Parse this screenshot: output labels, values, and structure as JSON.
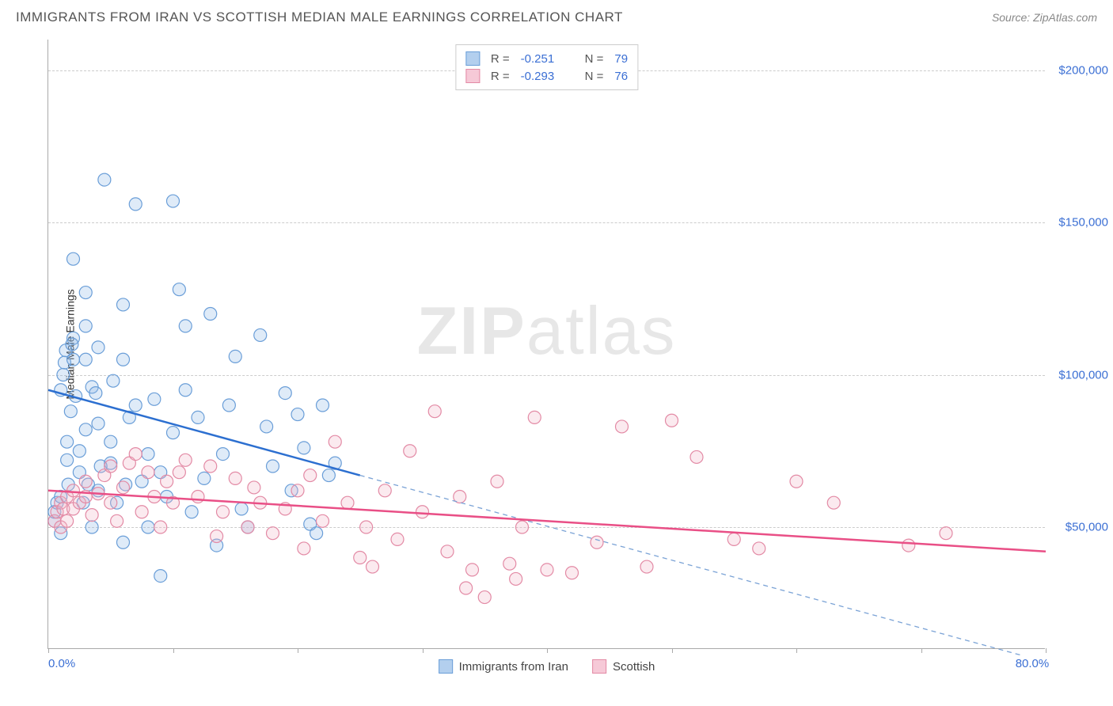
{
  "title": "IMMIGRANTS FROM IRAN VS SCOTTISH MEDIAN MALE EARNINGS CORRELATION CHART",
  "source": "Source: ZipAtlas.com",
  "ylabel": "Median Male Earnings",
  "watermark_zip": "ZIP",
  "watermark_atlas": "atlas",
  "chart": {
    "type": "scatter",
    "xlim": [
      0,
      80
    ],
    "ylim": [
      10000,
      210000
    ],
    "xtick_min_label": "0.0%",
    "xtick_max_label": "80.0%",
    "xticks": [
      0,
      10,
      20,
      30,
      40,
      50,
      60,
      70,
      80
    ],
    "yticks": [
      50000,
      100000,
      150000,
      200000
    ],
    "ytick_labels": [
      "$50,000",
      "$100,000",
      "$150,000",
      "$200,000"
    ],
    "background_color": "#ffffff",
    "grid_color": "#cccccc",
    "axis_color": "#aaaaaa",
    "tick_label_color": "#3b6fd4",
    "marker_radius": 8,
    "marker_stroke_width": 1.2,
    "marker_fill_opacity": 0.28,
    "series": [
      {
        "name": "Immigrants from Iran",
        "color_stroke": "#6a9ed8",
        "color_fill": "#8db8e6",
        "line_color": "#2c6fd0",
        "line_width": 2.5,
        "dash_color": "#7ba3d6",
        "R": "-0.251",
        "N": "79",
        "regression": {
          "x1": 0,
          "y1": 95000,
          "x2": 25,
          "y2": 67000
        },
        "dash_extension": {
          "x1": 25,
          "y1": 67000,
          "x2": 78,
          "y2": 8000
        },
        "points": [
          [
            0.5,
            52000
          ],
          [
            0.5,
            55000
          ],
          [
            0.7,
            58000
          ],
          [
            1,
            60000
          ],
          [
            1,
            48000
          ],
          [
            1,
            95000
          ],
          [
            1.2,
            100000
          ],
          [
            1.3,
            104000
          ],
          [
            1.4,
            108000
          ],
          [
            1.5,
            78000
          ],
          [
            1.5,
            72000
          ],
          [
            1.6,
            64000
          ],
          [
            1.8,
            88000
          ],
          [
            2,
            105000
          ],
          [
            2,
            138000
          ],
          [
            2,
            112000
          ],
          [
            2.2,
            93000
          ],
          [
            2.5,
            75000
          ],
          [
            2.5,
            68000
          ],
          [
            3,
            116000
          ],
          [
            3,
            127000
          ],
          [
            3,
            105000
          ],
          [
            3,
            82000
          ],
          [
            3.2,
            64000
          ],
          [
            3.5,
            50000
          ],
          [
            3.5,
            96000
          ],
          [
            4,
            109000
          ],
          [
            4,
            84000
          ],
          [
            4,
            62000
          ],
          [
            4.5,
            164000
          ],
          [
            5,
            78000
          ],
          [
            5,
            71000
          ],
          [
            5.2,
            98000
          ],
          [
            5.5,
            58000
          ],
          [
            6,
            105000
          ],
          [
            6,
            123000
          ],
          [
            6,
            45000
          ],
          [
            6.5,
            86000
          ],
          [
            7,
            156000
          ],
          [
            7,
            90000
          ],
          [
            7.5,
            65000
          ],
          [
            8,
            74000
          ],
          [
            8,
            50000
          ],
          [
            8.5,
            92000
          ],
          [
            9,
            68000
          ],
          [
            9,
            34000
          ],
          [
            9.5,
            60000
          ],
          [
            10,
            157000
          ],
          [
            10,
            81000
          ],
          [
            10.5,
            128000
          ],
          [
            11,
            95000
          ],
          [
            11,
            116000
          ],
          [
            11.5,
            55000
          ],
          [
            12,
            86000
          ],
          [
            12.5,
            66000
          ],
          [
            13,
            120000
          ],
          [
            13.5,
            44000
          ],
          [
            14,
            74000
          ],
          [
            14.5,
            90000
          ],
          [
            15,
            106000
          ],
          [
            15.5,
            56000
          ],
          [
            16,
            50000
          ],
          [
            17,
            113000
          ],
          [
            17.5,
            83000
          ],
          [
            18,
            70000
          ],
          [
            19,
            94000
          ],
          [
            19.5,
            62000
          ],
          [
            20,
            87000
          ],
          [
            20.5,
            76000
          ],
          [
            21,
            51000
          ],
          [
            21.5,
            48000
          ],
          [
            22,
            90000
          ],
          [
            22.5,
            67000
          ],
          [
            23,
            71000
          ],
          [
            4.2,
            70000
          ],
          [
            2.8,
            58000
          ],
          [
            1.9,
            110000
          ],
          [
            6.2,
            64000
          ],
          [
            3.8,
            94000
          ]
        ]
      },
      {
        "name": "Scottish",
        "color_stroke": "#e38aa5",
        "color_fill": "#f2b3c5",
        "line_color": "#e94f86",
        "line_width": 2.5,
        "R": "-0.293",
        "N": "76",
        "regression": {
          "x1": 0,
          "y1": 62000,
          "x2": 80,
          "y2": 42000
        },
        "points": [
          [
            0.5,
            52000
          ],
          [
            0.7,
            55000
          ],
          [
            1,
            58000
          ],
          [
            1,
            50000
          ],
          [
            1.2,
            56000
          ],
          [
            1.5,
            60000
          ],
          [
            1.5,
            52000
          ],
          [
            2,
            62000
          ],
          [
            2,
            56000
          ],
          [
            2.5,
            58000
          ],
          [
            3,
            60000
          ],
          [
            3,
            65000
          ],
          [
            3.5,
            54000
          ],
          [
            4,
            61000
          ],
          [
            4.5,
            67000
          ],
          [
            5,
            58000
          ],
          [
            5,
            70000
          ],
          [
            5.5,
            52000
          ],
          [
            6,
            63000
          ],
          [
            6.5,
            71000
          ],
          [
            7,
            74000
          ],
          [
            7.5,
            55000
          ],
          [
            8,
            68000
          ],
          [
            8.5,
            60000
          ],
          [
            9,
            50000
          ],
          [
            9.5,
            65000
          ],
          [
            10,
            58000
          ],
          [
            10.5,
            68000
          ],
          [
            11,
            72000
          ],
          [
            12,
            60000
          ],
          [
            13,
            70000
          ],
          [
            13.5,
            47000
          ],
          [
            14,
            55000
          ],
          [
            15,
            66000
          ],
          [
            16,
            50000
          ],
          [
            16.5,
            63000
          ],
          [
            17,
            58000
          ],
          [
            18,
            48000
          ],
          [
            19,
            56000
          ],
          [
            20,
            62000
          ],
          [
            20.5,
            43000
          ],
          [
            21,
            67000
          ],
          [
            22,
            52000
          ],
          [
            23,
            78000
          ],
          [
            24,
            58000
          ],
          [
            25,
            40000
          ],
          [
            25.5,
            50000
          ],
          [
            26,
            37000
          ],
          [
            27,
            62000
          ],
          [
            28,
            46000
          ],
          [
            29,
            75000
          ],
          [
            30,
            55000
          ],
          [
            31,
            88000
          ],
          [
            32,
            42000
          ],
          [
            33,
            60000
          ],
          [
            33.5,
            30000
          ],
          [
            34,
            36000
          ],
          [
            35,
            27000
          ],
          [
            36,
            65000
          ],
          [
            37,
            38000
          ],
          [
            37.5,
            33000
          ],
          [
            38,
            50000
          ],
          [
            39,
            86000
          ],
          [
            40,
            36000
          ],
          [
            42,
            35000
          ],
          [
            44,
            45000
          ],
          [
            46,
            83000
          ],
          [
            48,
            37000
          ],
          [
            50,
            85000
          ],
          [
            52,
            73000
          ],
          [
            55,
            46000
          ],
          [
            57,
            43000
          ],
          [
            60,
            65000
          ],
          [
            63,
            58000
          ],
          [
            69,
            44000
          ],
          [
            72,
            48000
          ]
        ]
      }
    ]
  },
  "legend_bottom": [
    {
      "label": "Immigrants from Iran",
      "fill": "#b3cfee",
      "stroke": "#6a9ed8"
    },
    {
      "label": "Scottish",
      "fill": "#f6c9d7",
      "stroke": "#e38aa5"
    }
  ]
}
